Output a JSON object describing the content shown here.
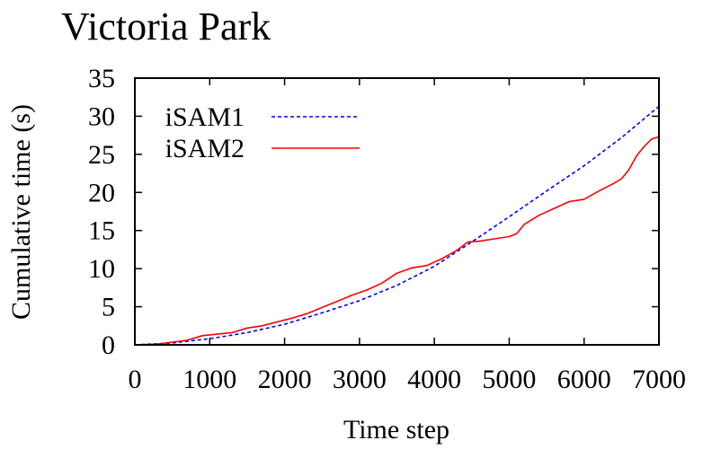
{
  "chart_data": {
    "type": "line",
    "title": "Victoria Park",
    "xlabel": "Time step",
    "ylabel": "Cumulative time (s)",
    "xlim": [
      0,
      7000
    ],
    "ylim": [
      0,
      35
    ],
    "xticks": [
      "0",
      "1000",
      "2000",
      "3000",
      "4000",
      "5000",
      "6000",
      "7000"
    ],
    "yticks": [
      "0",
      "5",
      "10",
      "15",
      "20",
      "25",
      "30",
      "35"
    ],
    "grid": false,
    "legend_position": "top-left",
    "series": [
      {
        "name": "iSAM1",
        "color": "#0000ff",
        "style": "dashed",
        "x": [
          0,
          500,
          1000,
          1500,
          2000,
          2500,
          3000,
          3500,
          4000,
          4500,
          5000,
          5500,
          6000,
          6500,
          7000
        ],
        "y": [
          0,
          0.25,
          0.8,
          1.6,
          2.7,
          4.2,
          5.8,
          7.8,
          10.3,
          13.5,
          16.8,
          20.2,
          23.5,
          27.2,
          31.3
        ]
      },
      {
        "name": "iSAM2",
        "color": "#ff0000",
        "style": "solid",
        "x": [
          0,
          300,
          500,
          700,
          900,
          1100,
          1300,
          1500,
          1700,
          1900,
          2100,
          2300,
          2500,
          2700,
          2900,
          3100,
          3300,
          3500,
          3700,
          3900,
          4100,
          4300,
          4450,
          4600,
          4800,
          5000,
          5100,
          5200,
          5400,
          5600,
          5800,
          6000,
          6200,
          6400,
          6500,
          6600,
          6700,
          6800,
          6900,
          7000
        ],
        "y": [
          0,
          0.1,
          0.35,
          0.6,
          1.2,
          1.4,
          1.6,
          2.2,
          2.5,
          3.0,
          3.5,
          4.1,
          4.9,
          5.7,
          6.5,
          7.2,
          8.1,
          9.4,
          10.1,
          10.4,
          11.3,
          12.4,
          13.5,
          13.6,
          13.9,
          14.2,
          14.6,
          15.8,
          17.0,
          17.9,
          18.8,
          19.1,
          20.2,
          21.2,
          21.8,
          23.0,
          24.8,
          26.0,
          27.0,
          27.3
        ]
      }
    ]
  }
}
